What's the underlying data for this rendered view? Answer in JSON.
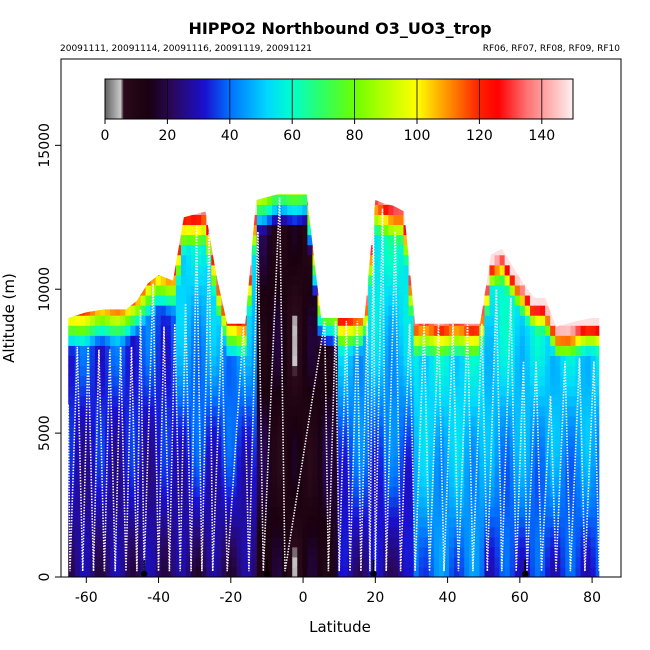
{
  "chart_data": {
    "type": "heatmap",
    "title": "HIPPO2 Northbound O3_UO3_trop",
    "subtitle_left": "20091111, 20091114, 20091116, 20091119, 20091121",
    "subtitle_right": "RF06, RF07, RF08, RF09, RF10",
    "xlabel": "Latitude",
    "ylabel": "Altitude (m)",
    "xlim": [
      -67,
      88
    ],
    "ylim": [
      0,
      18000
    ],
    "x_ticks": [
      "-60",
      "-40",
      "-20",
      "0",
      "20",
      "40",
      "60",
      "80"
    ],
    "x_tick_values": [
      -60,
      -40,
      -20,
      0,
      20,
      40,
      60,
      80
    ],
    "y_ticks": [
      "0",
      "5000",
      "10000",
      "15000"
    ],
    "y_tick_values": [
      0,
      5000,
      10000,
      15000
    ],
    "colorbar": {
      "min": 0,
      "max": 150,
      "ticks": [
        "0",
        "20",
        "40",
        "60",
        "80",
        "100",
        "120",
        "140"
      ],
      "tick_values": [
        0,
        20,
        40,
        60,
        80,
        100,
        120,
        140
      ],
      "gradient": [
        [
          0,
          "#606060"
        ],
        [
          5,
          "#c8c8c8"
        ],
        [
          6,
          "#2a0a1a"
        ],
        [
          14,
          "#1a0010"
        ],
        [
          22,
          "#2a0860"
        ],
        [
          32,
          "#1a10d0"
        ],
        [
          40,
          "#0070ff"
        ],
        [
          52,
          "#00d8ff"
        ],
        [
          60,
          "#00ffcc"
        ],
        [
          70,
          "#30ff60"
        ],
        [
          80,
          "#6cff00"
        ],
        [
          92,
          "#c8ff00"
        ],
        [
          100,
          "#ffff00"
        ],
        [
          110,
          "#ff9000"
        ],
        [
          120,
          "#ff2000"
        ],
        [
          126,
          "#ff0000"
        ],
        [
          135,
          "#ff7070"
        ],
        [
          150,
          "#fff0f0"
        ]
      ]
    },
    "tropopause_profile": {
      "lat": [
        -65,
        -60,
        -55,
        -52,
        -49,
        -46,
        -43,
        -40,
        -36,
        -33,
        -30,
        -27,
        -24,
        -21,
        -16,
        -13,
        -10,
        -7,
        -4,
        1,
        5,
        9,
        13,
        17,
        20,
        22,
        25,
        28,
        31,
        34,
        38,
        42,
        46,
        49,
        52,
        55,
        58,
        61,
        64,
        67,
        70,
        73,
        76,
        80,
        82
      ],
      "alt": [
        9000,
        9200,
        9300,
        9300,
        9300,
        9600,
        10200,
        10500,
        10300,
        12500,
        12600,
        12700,
        10500,
        8800,
        8800,
        13100,
        13200,
        13300,
        13300,
        13300,
        9000,
        9000,
        9000,
        9000,
        13100,
        13000,
        12900,
        12700,
        8800,
        8800,
        8800,
        8800,
        8800,
        8800,
        11200,
        11400,
        10800,
        10200,
        9700,
        9700,
        8700,
        8800,
        8900,
        9000,
        9000
      ]
    },
    "flight_profiles": [
      {
        "lat_start": -65.5,
        "lat_end": -64.5,
        "alt_top": 6000
      },
      {
        "lat_start": -64,
        "lat_end": -61,
        "alt_top": 8000
      },
      {
        "lat_start": -61,
        "lat_end": -58,
        "alt_top": 8000
      },
      {
        "lat_start": -58,
        "lat_end": -55,
        "alt_top": 7900
      },
      {
        "lat_start": -55,
        "lat_end": -52,
        "alt_top": 7900
      },
      {
        "lat_start": -52,
        "lat_end": -49,
        "alt_top": 8000
      },
      {
        "lat_start": -49,
        "lat_end": -46,
        "alt_top": 8000
      },
      {
        "lat_start": -46,
        "lat_end": -44,
        "alt_top": 9300
      },
      {
        "lat_start": -43,
        "lat_end": -40,
        "alt_top": 10200
      },
      {
        "lat_start": -40,
        "lat_end": -37,
        "alt_top": 8700
      },
      {
        "lat_start": -37,
        "lat_end": -34,
        "alt_top": 8800
      },
      {
        "lat_start": -34,
        "lat_end": -31,
        "alt_top": 9500
      },
      {
        "lat_start": -31,
        "lat_end": -28,
        "alt_top": 12200
      },
      {
        "lat_start": -27,
        "lat_end": -25,
        "alt_top": 12000
      },
      {
        "lat_start": -24,
        "lat_end": -21,
        "alt_top": 8700
      },
      {
        "lat_start": -18,
        "lat_end": -15,
        "alt_top": 8700
      },
      {
        "lat_start": -14,
        "lat_end": -11,
        "alt_top": 12000
      },
      {
        "lat_start": -8,
        "lat_end": -5,
        "alt_top": 13200
      },
      {
        "lat_start": 5,
        "lat_end": 7,
        "alt_top": 8900
      },
      {
        "lat_start": 8,
        "lat_end": 10,
        "alt_top": 8900
      },
      {
        "lat_start": 11,
        "lat_end": 13,
        "alt_top": 8900
      },
      {
        "lat_start": 14,
        "lat_end": 16,
        "alt_top": 8900
      },
      {
        "lat_start": 17,
        "lat_end": 18.5,
        "alt_top": 8900
      },
      {
        "lat_start": 19,
        "lat_end": 20,
        "alt_top": 13000
      },
      {
        "lat_start": 21,
        "lat_end": 23,
        "alt_top": 12800
      },
      {
        "lat_start": 24,
        "lat_end": 27,
        "alt_top": 12000
      },
      {
        "lat_start": 28,
        "lat_end": 31,
        "alt_top": 8800
      },
      {
        "lat_start": 32,
        "lat_end": 35,
        "alt_top": 8800
      },
      {
        "lat_start": 36,
        "lat_end": 39,
        "alt_top": 8800
      },
      {
        "lat_start": 40,
        "lat_end": 43,
        "alt_top": 8800
      },
      {
        "lat_start": 44,
        "lat_end": 47,
        "alt_top": 8800
      },
      {
        "lat_start": 48,
        "lat_end": 51,
        "alt_top": 8800
      },
      {
        "lat_start": 52,
        "lat_end": 55,
        "alt_top": 10000
      },
      {
        "lat_start": 56,
        "lat_end": 59,
        "alt_top": 9700
      },
      {
        "lat_start": 60,
        "lat_end": 62,
        "alt_top": 7500
      },
      {
        "lat_start": 63,
        "lat_end": 66,
        "alt_top": 7500
      },
      {
        "lat_start": 67,
        "lat_end": 70,
        "alt_top": 6300
      },
      {
        "lat_start": 71,
        "lat_end": 74,
        "alt_top": 7500
      },
      {
        "lat_start": 75,
        "lat_end": 78,
        "alt_top": 7600
      },
      {
        "lat_start": 79,
        "lat_end": 82,
        "alt_top": 7500
      },
      {
        "lat_start": 82.5,
        "lat_end": 84,
        "alt_top": 5000
      }
    ],
    "airport_markers_lat": [
      -44,
      -10,
      19.5,
      61.5
    ]
  }
}
